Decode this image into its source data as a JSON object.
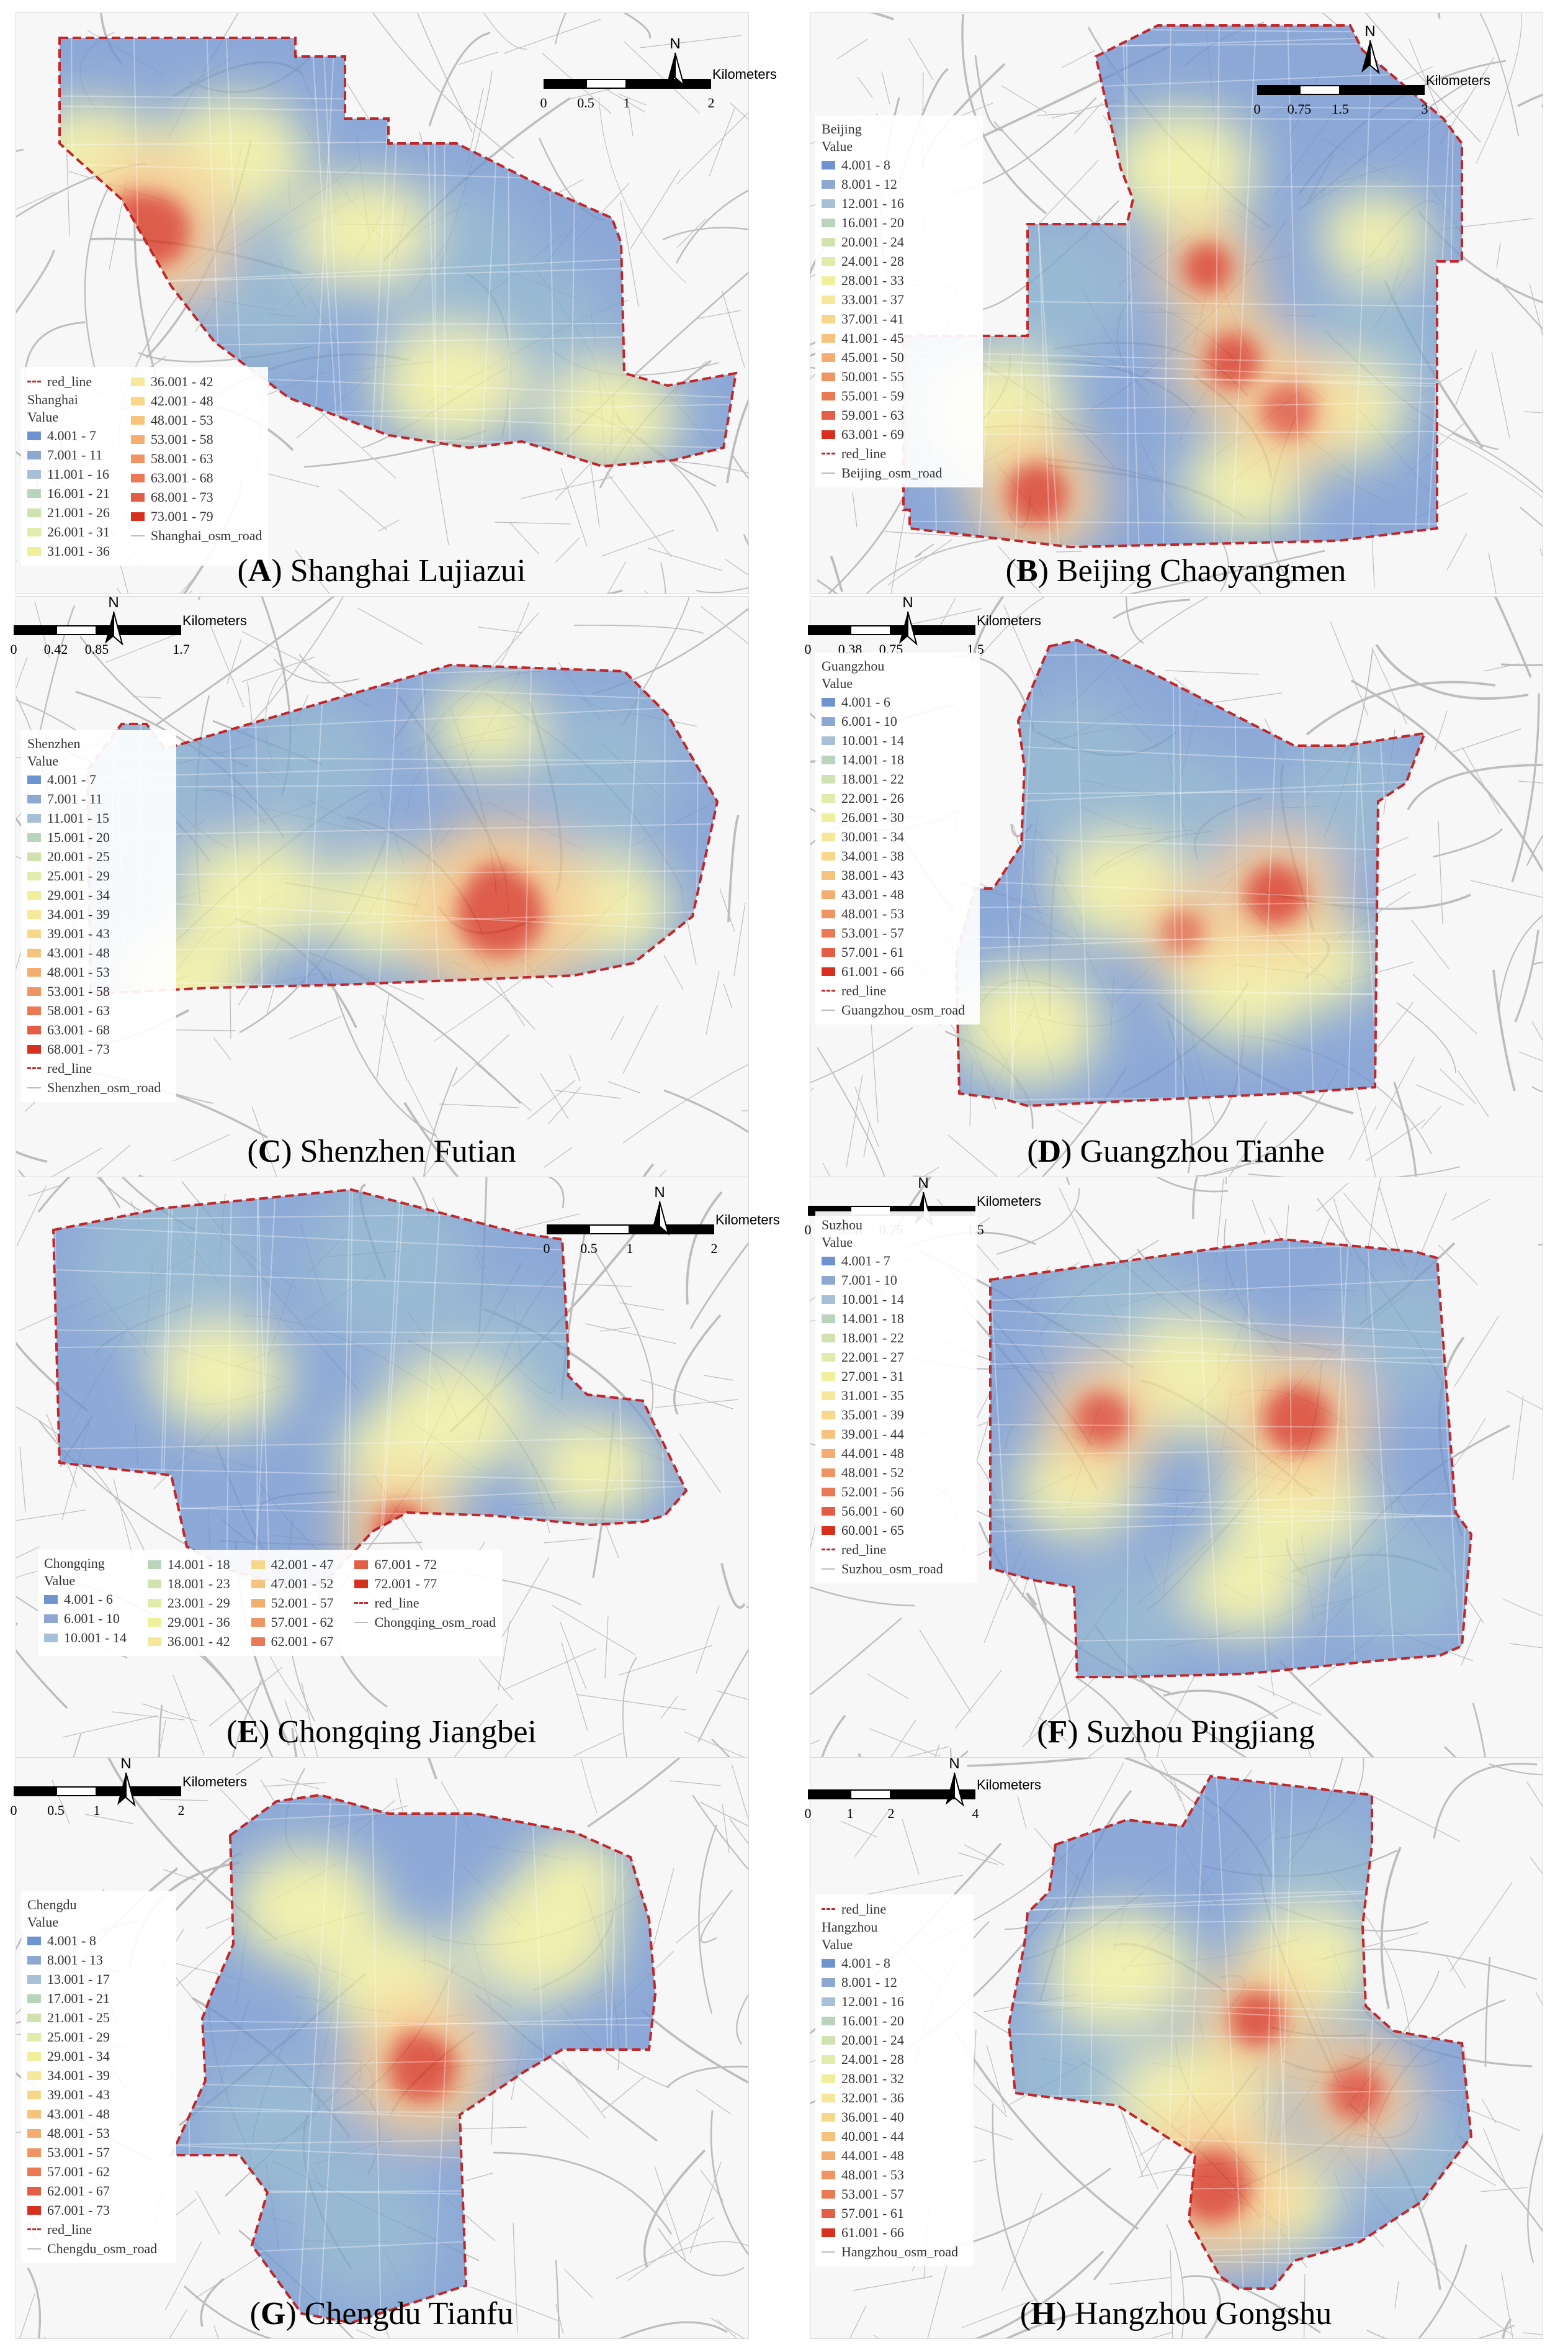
{
  "scale_unit": "Kilometers",
  "north_label": "N",
  "colors": {
    "boundary": "#c0262a",
    "road": "#bdbdbd",
    "low": "#6f93cf",
    "mid": "#f0ef9c",
    "high": "#d7301f"
  },
  "panels": [
    {
      "id": "A",
      "caption_letter": "A",
      "caption_name": "Shanghai Lujiazui",
      "scale_ticks": [
        "0",
        "0.5",
        "1",
        "2"
      ],
      "legend_title": "Shanghai",
      "value_label": "Value",
      "red_line": "red_line",
      "road_label": "Shanghai_osm_road",
      "classes": [
        "4.001 - 7",
        "7.001 - 11",
        "11.001 - 16",
        "16.001 - 21",
        "21.001 - 26",
        "26.001 - 31",
        "31.001 - 36",
        "36.001 - 42",
        "42.001 - 48",
        "48.001 - 53",
        "53.001 - 58",
        "58.001 - 63",
        "63.001 - 68",
        "68.001 - 73",
        "73.001 - 79"
      ]
    },
    {
      "id": "B",
      "caption_letter": "B",
      "caption_name": "Beijing Chaoyangmen",
      "scale_ticks": [
        "0",
        "0.75",
        "1.5",
        "3"
      ],
      "legend_title": "Beijing",
      "value_label": "Value",
      "red_line": "red_line",
      "road_label": "Beijing_osm_road",
      "classes": [
        "4.001 - 8",
        "8.001 - 12",
        "12.001 - 16",
        "16.001 - 20",
        "20.001 - 24",
        "24.001 - 28",
        "28.001 - 33",
        "33.001 - 37",
        "37.001 - 41",
        "41.001 - 45",
        "45.001 - 50",
        "50.001 - 55",
        "55.001 - 59",
        "59.001 - 63",
        "63.001 - 69"
      ]
    },
    {
      "id": "C",
      "caption_letter": "C",
      "caption_name": "Shenzhen Futian",
      "scale_ticks": [
        "0",
        "0.42",
        "0.85",
        "1.7"
      ],
      "legend_title": "Shenzhen",
      "value_label": "Value",
      "red_line": "red_line",
      "road_label": "Shenzhen_osm_road",
      "classes": [
        "4.001 - 7",
        "7.001 - 11",
        "11.001 - 15",
        "15.001 - 20",
        "20.001 - 25",
        "25.001 - 29",
        "29.001 - 34",
        "34.001 - 39",
        "39.001 - 43",
        "43.001 - 48",
        "48.001 - 53",
        "53.001 - 58",
        "58.001 - 63",
        "63.001 - 68",
        "68.001 - 73"
      ]
    },
    {
      "id": "D",
      "caption_letter": "D",
      "caption_name": "Guangzhou Tianhe",
      "scale_ticks": [
        "0",
        "0.38",
        "0.75",
        "1.5"
      ],
      "legend_title": "Guangzhou",
      "value_label": "Value",
      "red_line": "red_line",
      "road_label": "Guangzhou_osm_road",
      "classes": [
        "4.001 - 6",
        "6.001 - 10",
        "10.001 - 14",
        "14.001 - 18",
        "18.001 - 22",
        "22.001 - 26",
        "26.001 - 30",
        "30.001 - 34",
        "34.001 - 38",
        "38.001 - 43",
        "43.001 - 48",
        "48.001 - 53",
        "53.001 - 57",
        "57.001 - 61",
        "61.001 - 66"
      ]
    },
    {
      "id": "E",
      "caption_letter": "E",
      "caption_name": "Chongqing Jiangbei",
      "scale_ticks": [
        "0",
        "0.5",
        "1",
        "2"
      ],
      "legend_title": "Chongqing",
      "value_label": "Value",
      "red_line": "red_line",
      "road_label": "Chongqing_osm_road",
      "classes": [
        "4.001 - 6",
        "6.001 - 10",
        "10.001 - 14",
        "14.001 - 18",
        "18.001 - 23",
        "23.001 - 29",
        "29.001 - 36",
        "36.001 - 42",
        "42.001 - 47",
        "47.001 - 52",
        "52.001 - 57",
        "57.001 - 62",
        "62.001 - 67",
        "67.001 - 72",
        "72.001 - 77"
      ]
    },
    {
      "id": "F",
      "caption_letter": "F",
      "caption_name": "Suzhou Pingjiang",
      "scale_ticks": [
        "0",
        "0.38",
        "0.75",
        "1.5"
      ],
      "legend_title": "Suzhou",
      "value_label": "Value",
      "red_line": "red_line",
      "road_label": "Suzhou_osm_road",
      "classes": [
        "4.001 - 7",
        "7.001 - 10",
        "10.001 - 14",
        "14.001 - 18",
        "18.001 - 22",
        "22.001 - 27",
        "27.001 - 31",
        "31.001 - 35",
        "35.001 - 39",
        "39.001 - 44",
        "44.001 - 48",
        "48.001 - 52",
        "52.001 - 56",
        "56.001 - 60",
        "60.001 - 65"
      ]
    },
    {
      "id": "G",
      "caption_letter": "G",
      "caption_name": "Chengdu Tianfu",
      "scale_ticks": [
        "0",
        "0.5",
        "1",
        "2"
      ],
      "legend_title": "Chengdu",
      "value_label": "Value",
      "red_line": "red_line",
      "road_label": "Chengdu_osm_road",
      "classes": [
        "4.001 - 8",
        "8.001 - 13",
        "13.001 - 17",
        "17.001 - 21",
        "21.001 - 25",
        "25.001 - 29",
        "29.001 - 34",
        "34.001 - 39",
        "39.001 - 43",
        "43.001 - 48",
        "48.001 - 53",
        "53.001 - 57",
        "57.001 - 62",
        "62.001 - 67",
        "67.001 - 73"
      ]
    },
    {
      "id": "H",
      "caption_letter": "H",
      "caption_name": "Hangzhou Gongshu",
      "scale_ticks": [
        "0",
        "1",
        "2",
        "4"
      ],
      "legend_title": "Hangzhou",
      "value_label": "Value",
      "red_line": "red_line",
      "road_label": "Hangzhou_osm_road",
      "classes": [
        "4.001 - 8",
        "8.001 - 12",
        "12.001 - 16",
        "16.001 - 20",
        "20.001 - 24",
        "24.001 - 28",
        "28.001 - 32",
        "32.001 - 36",
        "36.001 - 40",
        "40.001 - 44",
        "44.001 - 48",
        "48.001 - 53",
        "53.001 - 57",
        "57.001 - 61",
        "61.001 - 66"
      ]
    }
  ]
}
